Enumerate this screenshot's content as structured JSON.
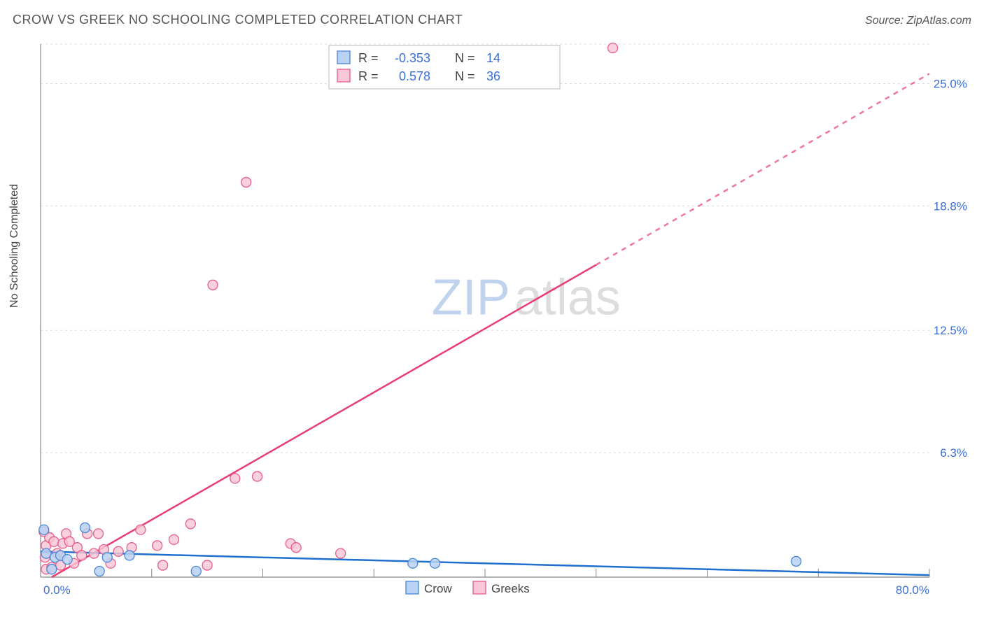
{
  "title": "CROW VS GREEK NO SCHOOLING COMPLETED CORRELATION CHART",
  "source": "Source: ZipAtlas.com",
  "ylabel": "No Schooling Completed",
  "watermark": {
    "zip": "ZIP",
    "atlas": "atlas",
    "zip_color": "#bfd3ef",
    "atlas_color": "#dddddd",
    "fontsize": 72
  },
  "chart": {
    "type": "scatter-with-regression",
    "background_color": "#ffffff",
    "grid_color": "#dcdcdc",
    "grid_dash": "3,4",
    "xlim": [
      0,
      80
    ],
    "ylim": [
      0,
      27
    ],
    "x_ticks": [
      0,
      80
    ],
    "x_tick_labels": [
      "0.0%",
      "80.0%"
    ],
    "y_ticks_right": [
      6.3,
      12.5,
      18.8,
      25.0
    ],
    "y_tick_labels": [
      "6.3%",
      "12.5%",
      "18.8%",
      "25.0%"
    ],
    "h_gridlines": [
      6.3,
      12.5,
      18.8,
      25.0,
      27
    ],
    "v_gridlines": [
      10,
      20,
      30,
      40,
      50,
      60,
      70,
      80
    ],
    "series": {
      "crow": {
        "label": "Crow",
        "color_stroke": "#4a87d6",
        "color_fill": "#b9d1f2",
        "marker_radius": 7,
        "marker_opacity": 0.85,
        "R": "-0.353",
        "N": "14",
        "points": [
          [
            0.3,
            2.4
          ],
          [
            0.5,
            1.2
          ],
          [
            1.0,
            0.4
          ],
          [
            1.3,
            1.0
          ],
          [
            1.8,
            1.1
          ],
          [
            2.4,
            0.9
          ],
          [
            4.0,
            2.5
          ],
          [
            5.3,
            0.3
          ],
          [
            6.0,
            1.0
          ],
          [
            8.0,
            1.1
          ],
          [
            14.0,
            0.3
          ],
          [
            33.5,
            0.7
          ],
          [
            35.5,
            0.7
          ],
          [
            68.0,
            0.8
          ]
        ],
        "reg_line": {
          "x1": 0,
          "y1": 1.3,
          "x2": 80,
          "y2": 0.1,
          "color": "#1f6fd0",
          "width": 2.5,
          "dash_after_x": null
        }
      },
      "greeks": {
        "label": "Greeks",
        "color_stroke": "#e85d8a",
        "color_fill": "#f8c6d5",
        "marker_radius": 7,
        "marker_opacity": 0.8,
        "R": "0.578",
        "N": "36",
        "points": [
          [
            0.3,
            2.3
          ],
          [
            0.4,
            1.0
          ],
          [
            0.5,
            0.4
          ],
          [
            0.5,
            1.6
          ],
          [
            0.8,
            2.0
          ],
          [
            1.0,
            0.5
          ],
          [
            1.2,
            1.8
          ],
          [
            1.5,
            1.2
          ],
          [
            1.8,
            0.6
          ],
          [
            2.0,
            1.7
          ],
          [
            2.3,
            2.2
          ],
          [
            2.6,
            1.8
          ],
          [
            3.0,
            0.7
          ],
          [
            3.3,
            1.5
          ],
          [
            3.7,
            1.1
          ],
          [
            4.2,
            2.2
          ],
          [
            4.8,
            1.2
          ],
          [
            5.2,
            2.2
          ],
          [
            5.7,
            1.4
          ],
          [
            6.3,
            0.7
          ],
          [
            7.0,
            1.3
          ],
          [
            8.2,
            1.5
          ],
          [
            9.0,
            2.4
          ],
          [
            10.5,
            1.6
          ],
          [
            11.0,
            0.6
          ],
          [
            12.0,
            1.9
          ],
          [
            13.5,
            2.7
          ],
          [
            15.0,
            0.6
          ],
          [
            15.5,
            14.8
          ],
          [
            17.5,
            5.0
          ],
          [
            18.5,
            20.0
          ],
          [
            19.5,
            5.1
          ],
          [
            22.5,
            1.7
          ],
          [
            23.0,
            1.5
          ],
          [
            27.0,
            1.2
          ],
          [
            51.5,
            26.8
          ]
        ],
        "reg_line": {
          "x1": 1,
          "y1": 0,
          "x2": 80,
          "y2": 25.5,
          "color": "#e83e74",
          "width": 2.5,
          "dash_after_x": 50
        }
      }
    },
    "legend_top": {
      "box_stroke": "#bbbbbb",
      "text_color_label": "#444444",
      "text_color_value": "#3a6fd8"
    },
    "legend_bottom": {
      "items": [
        "crow",
        "greeks"
      ]
    }
  }
}
